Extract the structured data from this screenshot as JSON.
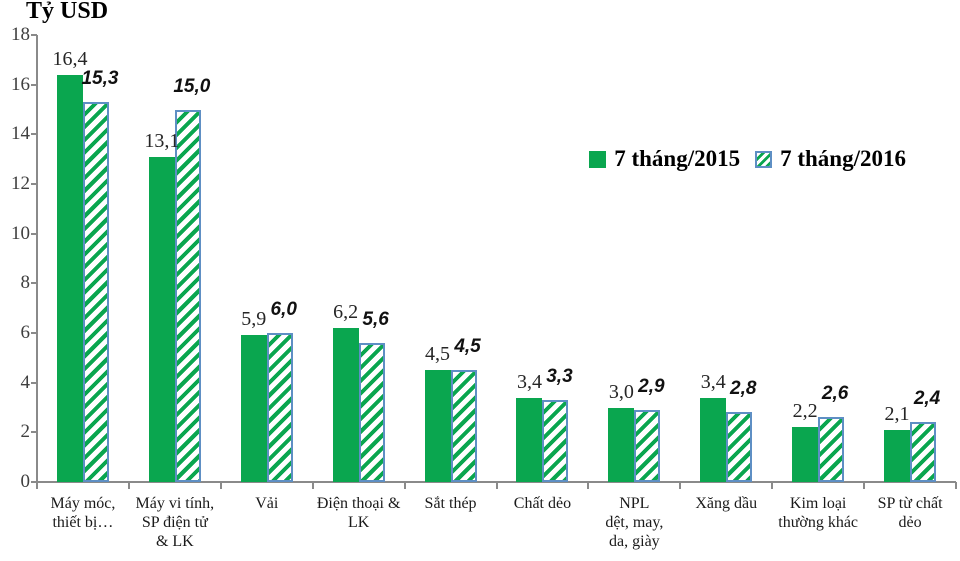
{
  "colors": {
    "bar_green": "#0aa64f",
    "hatch_border_blue": "#5e8fc4",
    "axis_gray": "#8a8a8a",
    "label_dark": "#262626"
  },
  "chart_data": {
    "type": "bar",
    "title": "Tỷ USD",
    "ylabel": "Tỷ USD",
    "xlabel": "",
    "ylim": [
      0,
      18
    ],
    "ytick_step": 2,
    "grid": false,
    "legend_position": "upper-right-inside",
    "categories": [
      "Máy móc,\nthiết bị…",
      "Máy vi tính,\nSP điện tử\n& LK",
      "Vải",
      "Điện thoại &\nLK",
      "Sắt thép",
      "Chất dẻo",
      "NPL\ndệt, may,\nda, giày",
      "Xăng dầu",
      "Kim loại\nthường khác",
      "SP từ chất\ndẻo"
    ],
    "series": [
      {
        "name": "7 tháng/2015",
        "style": "solid",
        "values": [
          16.4,
          13.1,
          5.9,
          6.2,
          4.5,
          3.4,
          3.0,
          3.4,
          2.2,
          2.1
        ],
        "labels": [
          "16,4",
          "13,1",
          "5,9",
          "6,2",
          "4,5",
          "3,4",
          "3,0",
          "3,4",
          "2,2",
          "2,1"
        ]
      },
      {
        "name": "7 tháng/2016",
        "style": "hatched",
        "values": [
          15.3,
          15.0,
          6.0,
          5.6,
          4.5,
          3.3,
          2.9,
          2.8,
          2.6,
          2.4
        ],
        "labels": [
          "15,3",
          "15,0",
          "6,0",
          "5,6",
          "4,5",
          "3,3",
          "2,9",
          "2,8",
          "2,6",
          "2,4"
        ]
      }
    ]
  }
}
